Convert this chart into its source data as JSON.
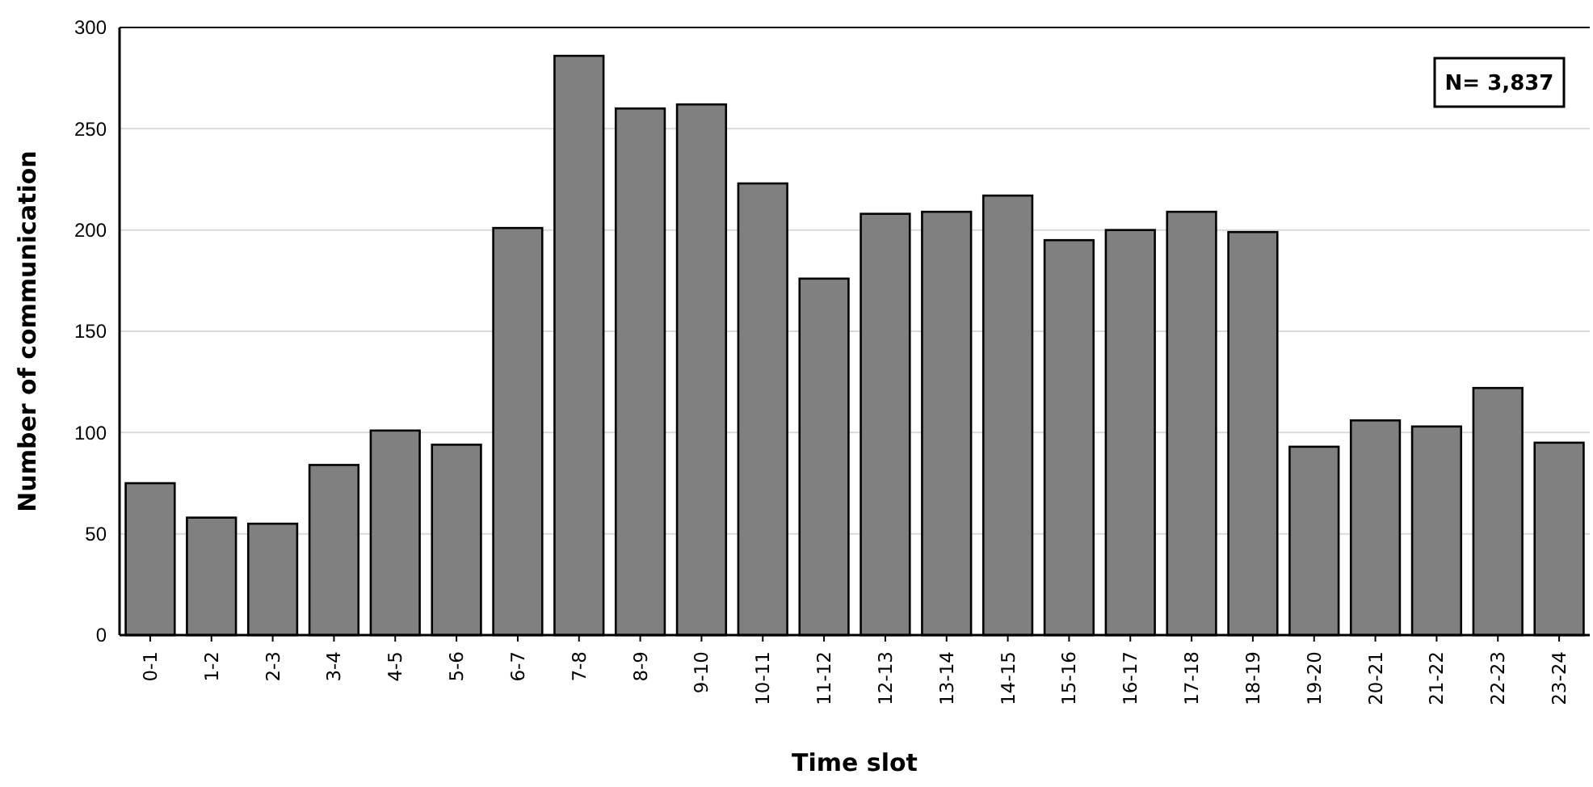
{
  "chart_data": {
    "type": "bar",
    "xlabel": "Time slot",
    "ylabel": "Number of communication",
    "categories": [
      "0-1",
      "1-2",
      "2-3",
      "3-4",
      "4-5",
      "5-6",
      "6-7",
      "7-8",
      "8-9",
      "9-10",
      "10-11",
      "11-12",
      "12-13",
      "13-14",
      "14-15",
      "15-16",
      "16-17",
      "17-18",
      "18-19",
      "19-20",
      "20-21",
      "21-22",
      "22-23",
      "23-24"
    ],
    "values": [
      75,
      58,
      55,
      84,
      101,
      94,
      201,
      286,
      260,
      262,
      223,
      176,
      208,
      209,
      217,
      195,
      200,
      209,
      199,
      93,
      106,
      103,
      122,
      95
    ],
    "color": "#808080",
    "ylim": [
      0,
      300
    ],
    "yticks": [
      0,
      50,
      100,
      150,
      200,
      250,
      300
    ],
    "grid": "y",
    "annotations": [
      "N= 3,837"
    ]
  }
}
